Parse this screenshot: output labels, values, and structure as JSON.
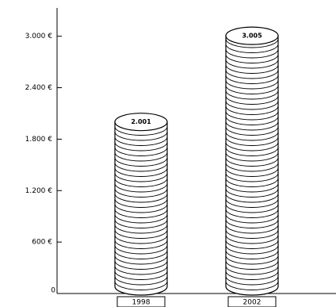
{
  "chart_data": {
    "type": "bar",
    "categories": [
      "1998",
      "2002"
    ],
    "values": [
      2001,
      3005
    ],
    "value_labels": [
      "2.001",
      "3.005"
    ],
    "color": "#ffffff",
    "ylim": [
      0,
      3330
    ],
    "yticks": [
      0,
      {
        "value": 600,
        "label": "600 €"
      },
      {
        "value": 1200,
        "label": "1.200 €"
      },
      {
        "value": 1800,
        "label": "1.800 €"
      },
      {
        "value": 2400,
        "label": "2.400 €"
      },
      {
        "value": 3000,
        "label": "3.000 €"
      }
    ]
  }
}
